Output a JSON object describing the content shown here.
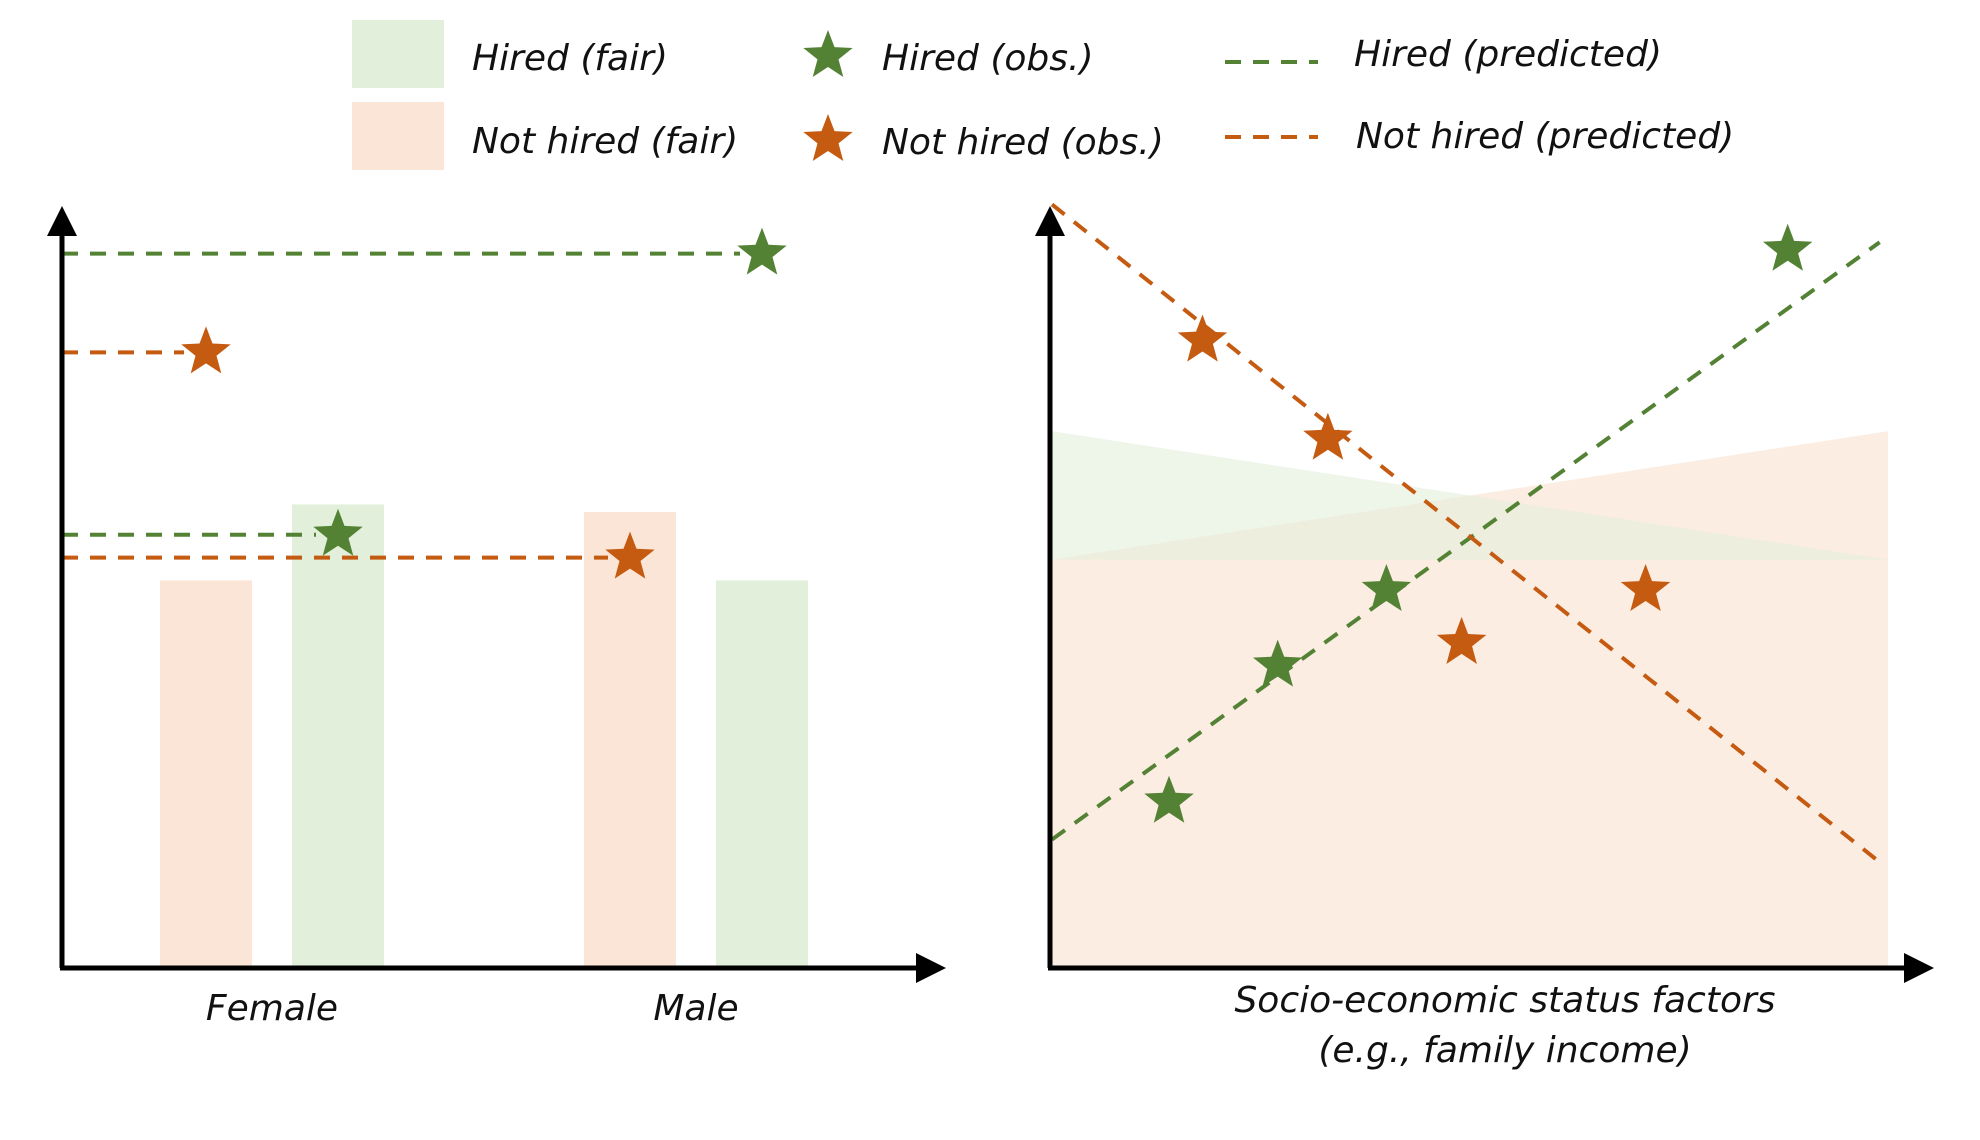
{
  "colors": {
    "hired": "#548235",
    "not_hired": "#C55A11",
    "hired_fair": "#e2efda",
    "not_hired_fair": "#fbe5d6",
    "axis": "#000000"
  },
  "legend": {
    "hired_fair": "Hired (fair)",
    "not_hired_fair": "Not hired (fair)",
    "hired_obs": "Hired (obs.)",
    "not_hired_obs": "Not hired (obs.)",
    "hired_pred": "Hired (predicted)",
    "not_hired_pred": "Not hired (predicted)"
  },
  "chart_data": [
    {
      "type": "bar",
      "title": "",
      "categories": [
        "Female",
        "Male"
      ],
      "xlabel": "",
      "ylabel": "",
      "ylim": [
        0,
        100
      ],
      "series": [
        {
          "name": "Not hired (fair)",
          "values": [
            51,
            60
          ]
        },
        {
          "name": "Hired (fair)",
          "values": [
            61,
            51
          ]
        }
      ],
      "observed": [
        {
          "name": "Not hired (obs.)",
          "values": [
            81,
            54
          ]
        },
        {
          "name": "Hired (obs.)",
          "values": [
            57,
            94
          ]
        }
      ],
      "predicted_levels": [
        {
          "name": "Hired (predicted)",
          "levels": [
            57,
            94
          ]
        },
        {
          "name": "Not hired (predicted)",
          "levels": [
            54,
            81
          ]
        }
      ]
    },
    {
      "type": "scatter",
      "title": "",
      "xlabel": "Socio-economic status factors",
      "xlabel_line2": "(e.g., family income)",
      "ylabel": "",
      "xlim": [
        0,
        100
      ],
      "ylim": [
        0,
        100
      ],
      "series": [
        {
          "name": "Hired (obs.)",
          "x": [
            14,
            27,
            40,
            88
          ],
          "y": [
            22,
            40,
            50,
            95
          ]
        },
        {
          "name": "Not hired (obs.)",
          "x": [
            18,
            33,
            49,
            71
          ],
          "y": [
            83,
            70,
            43,
            50
          ]
        }
      ],
      "trend_lines": [
        {
          "name": "Hired (predicted)",
          "x": [
            0,
            99
          ],
          "y": [
            17,
            96
          ]
        },
        {
          "name": "Not hired (predicted)",
          "x": [
            0,
            99
          ],
          "y": [
            101,
            14
          ]
        }
      ],
      "fair_bands": [
        {
          "name": "Hired (fair)",
          "x": [
            0,
            100
          ],
          "y_top": [
            71,
            54
          ],
          "y_bottom": [
            54,
            54
          ]
        },
        {
          "name": "Not hired (fair)",
          "x": [
            0,
            100
          ],
          "y_top": [
            54,
            71
          ],
          "y_bottom": [
            0,
            0
          ]
        }
      ]
    }
  ]
}
